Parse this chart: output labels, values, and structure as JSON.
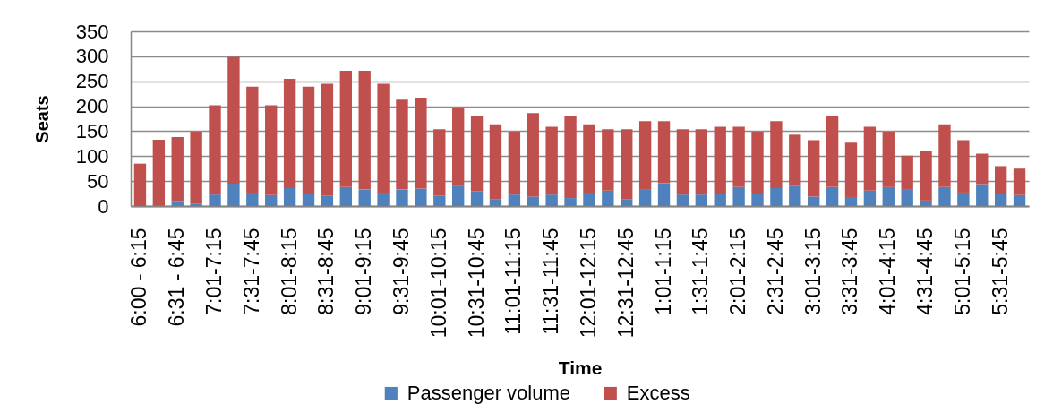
{
  "chart_data": {
    "type": "bar",
    "xlabel": "Time",
    "ylabel": "Seats",
    "categories": [
      "6:00 - 6:15",
      null,
      "6:31 - 6:45",
      null,
      "7:01-7:15",
      null,
      "7:31-7:45",
      null,
      "8:01-8:15",
      null,
      "8:31-8:45",
      null,
      "9:01-9:15",
      null,
      "9:31-9:45",
      null,
      "10:01-10:15",
      null,
      "10:31-10:45",
      null,
      "11:01-11:15",
      null,
      "11:31-11:45",
      null,
      "12:01-12:15",
      null,
      "12:31-12:45",
      null,
      "1:01-1:15",
      null,
      "1:31-1:45",
      null,
      "2:01-2:15",
      null,
      "2:31-2:45",
      null,
      "3:01-3:15",
      null,
      "3:31-3:45",
      null,
      "4:01-4:15",
      null,
      "4:31-4:45",
      null,
      "5:01-5:15",
      null,
      "5:31-5:45",
      null
    ],
    "series": [
      {
        "name": "Passenger volume",
        "color": "#4f81bd",
        "values": [
          0,
          2,
          10,
          4,
          23,
          45,
          27,
          22,
          36,
          25,
          20,
          38,
          33,
          27,
          33,
          35,
          20,
          41,
          29,
          13,
          23,
          19,
          23,
          16,
          27,
          31,
          13,
          34,
          46,
          23,
          23,
          25,
          38,
          25,
          36,
          40,
          19,
          38,
          18,
          31,
          38,
          34,
          11,
          38,
          27,
          44,
          25,
          22
        ]
      },
      {
        "name": "Excess",
        "color": "#c0504d",
        "values": [
          85,
          131,
          128,
          145,
          179,
          254,
          212,
          180,
          219,
          214,
          225,
          233,
          238,
          218,
          180,
          182,
          134,
          155,
          151,
          151,
          126,
          167,
          136,
          164,
          137,
          123,
          141,
          136,
          124,
          131,
          131,
          134,
          121,
          124,
          134,
          103,
          113,
          142,
          109,
          128,
          111,
          67,
          100,
          126,
          105,
          61,
          55,
          53
        ]
      }
    ],
    "stacked": true,
    "ylim": [
      0,
      350
    ],
    "yticks": [
      0,
      50,
      100,
      150,
      200,
      250,
      300,
      350
    ],
    "grid": "y",
    "legend": "bottom"
  }
}
